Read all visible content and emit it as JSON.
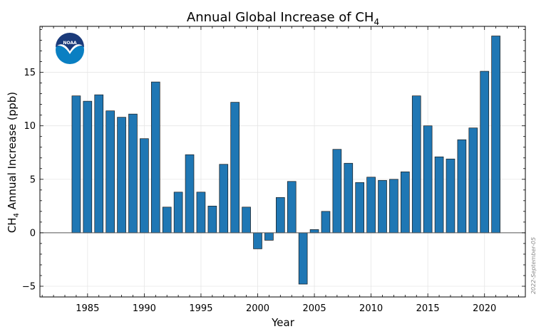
{
  "chart_data": {
    "type": "bar",
    "title_main": "Annual Global Increase of CH",
    "title_sub": "4",
    "xlabel": "Year",
    "ylabel_main": "CH",
    "ylabel_sub": "4",
    "ylabel_rest": " Annual Increase (ppb)",
    "x": [
      1984,
      1985,
      1986,
      1987,
      1988,
      1989,
      1990,
      1991,
      1992,
      1993,
      1994,
      1995,
      1996,
      1997,
      1998,
      1999,
      2000,
      2001,
      2002,
      2003,
      2004,
      2005,
      2006,
      2007,
      2008,
      2009,
      2010,
      2011,
      2012,
      2013,
      2014,
      2015,
      2016,
      2017,
      2018,
      2019,
      2020,
      2021
    ],
    "values": [
      12.8,
      12.3,
      12.9,
      11.4,
      10.8,
      11.1,
      8.8,
      14.1,
      2.4,
      3.8,
      7.3,
      3.8,
      2.5,
      6.4,
      12.2,
      2.4,
      -1.5,
      -0.7,
      3.3,
      4.8,
      -4.8,
      0.3,
      2.0,
      7.8,
      6.5,
      4.7,
      5.2,
      4.9,
      5.0,
      5.7,
      12.8,
      10.0,
      7.1,
      6.9,
      8.7,
      9.8,
      15.1,
      18.4
    ],
    "xticks": [
      1985,
      1990,
      1995,
      2000,
      2005,
      2010,
      2015,
      2020
    ],
    "yticks": [
      -5,
      0,
      5,
      10,
      15
    ],
    "xlim": [
      1980.8,
      2023.6
    ],
    "ylim": [
      -6.0,
      19.3
    ],
    "grid": true,
    "bar_color": "#1f77b4",
    "annotation": "2022-September-05",
    "logo_text": "NOAA"
  }
}
